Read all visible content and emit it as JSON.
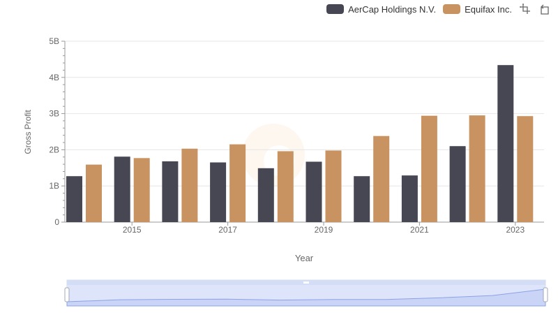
{
  "legend": {
    "series_a": "AerCap Holdings N.V.",
    "series_b": "Equifax Inc."
  },
  "toolbar": {
    "zoom_icon": "zoom-select-icon",
    "reset_icon": "zoom-reset-icon"
  },
  "chart_data": {
    "type": "bar",
    "title": "",
    "xlabel": "Year",
    "ylabel": "Gross Profit",
    "categories": [
      "2014",
      "2015",
      "2016",
      "2017",
      "2018",
      "2019",
      "2020",
      "2021",
      "2022",
      "2023"
    ],
    "x_tick_labels": [
      "2015",
      "2017",
      "2019",
      "2021",
      "2023"
    ],
    "y_tick_labels": [
      "0",
      "1B",
      "2B",
      "3B",
      "4B",
      "5B"
    ],
    "ylim": [
      0,
      5000000000
    ],
    "grid": true,
    "legend_position": "top-right",
    "series": [
      {
        "name": "AerCap Holdings N.V.",
        "color": "#474754",
        "values": [
          1270000000,
          1810000000,
          1680000000,
          1650000000,
          1490000000,
          1670000000,
          1270000000,
          1290000000,
          2100000000,
          4340000000
        ]
      },
      {
        "name": "Equifax Inc.",
        "color": "#c89361",
        "values": [
          1590000000,
          1770000000,
          2030000000,
          2150000000,
          1960000000,
          1980000000,
          2380000000,
          2940000000,
          2950000000,
          2930000000
        ]
      }
    ]
  }
}
